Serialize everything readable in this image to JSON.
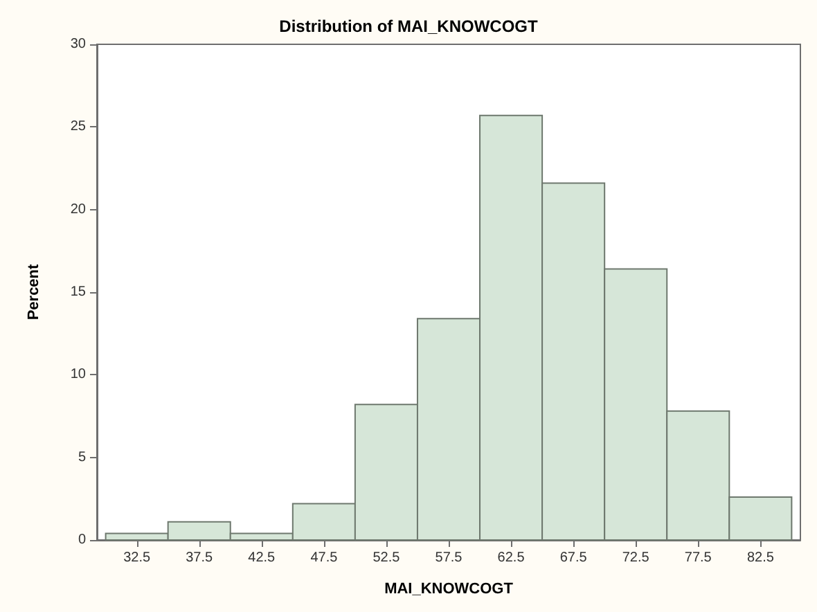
{
  "chart_data": {
    "type": "histogram",
    "title": "Distribution of MAI_KNOWCOGT",
    "xlabel": "MAI_KNOWCOGT",
    "ylabel": "Percent",
    "bins": [
      30,
      35,
      40,
      45,
      50,
      55,
      60,
      65,
      70,
      75,
      80,
      85
    ],
    "values": [
      0.4,
      1.1,
      0.4,
      2.2,
      8.2,
      13.4,
      25.7,
      21.6,
      16.4,
      7.8,
      2.6
    ],
    "color": "#d6e6d8",
    "xlim": [
      29.3,
      85.7
    ],
    "xticks": [
      32.5,
      37.5,
      42.5,
      47.5,
      52.5,
      57.5,
      62.5,
      67.5,
      72.5,
      77.5,
      82.5
    ],
    "ylim": [
      0,
      30
    ],
    "yticks": [
      0,
      5,
      10,
      15,
      20,
      25,
      30
    ],
    "grid": false
  }
}
